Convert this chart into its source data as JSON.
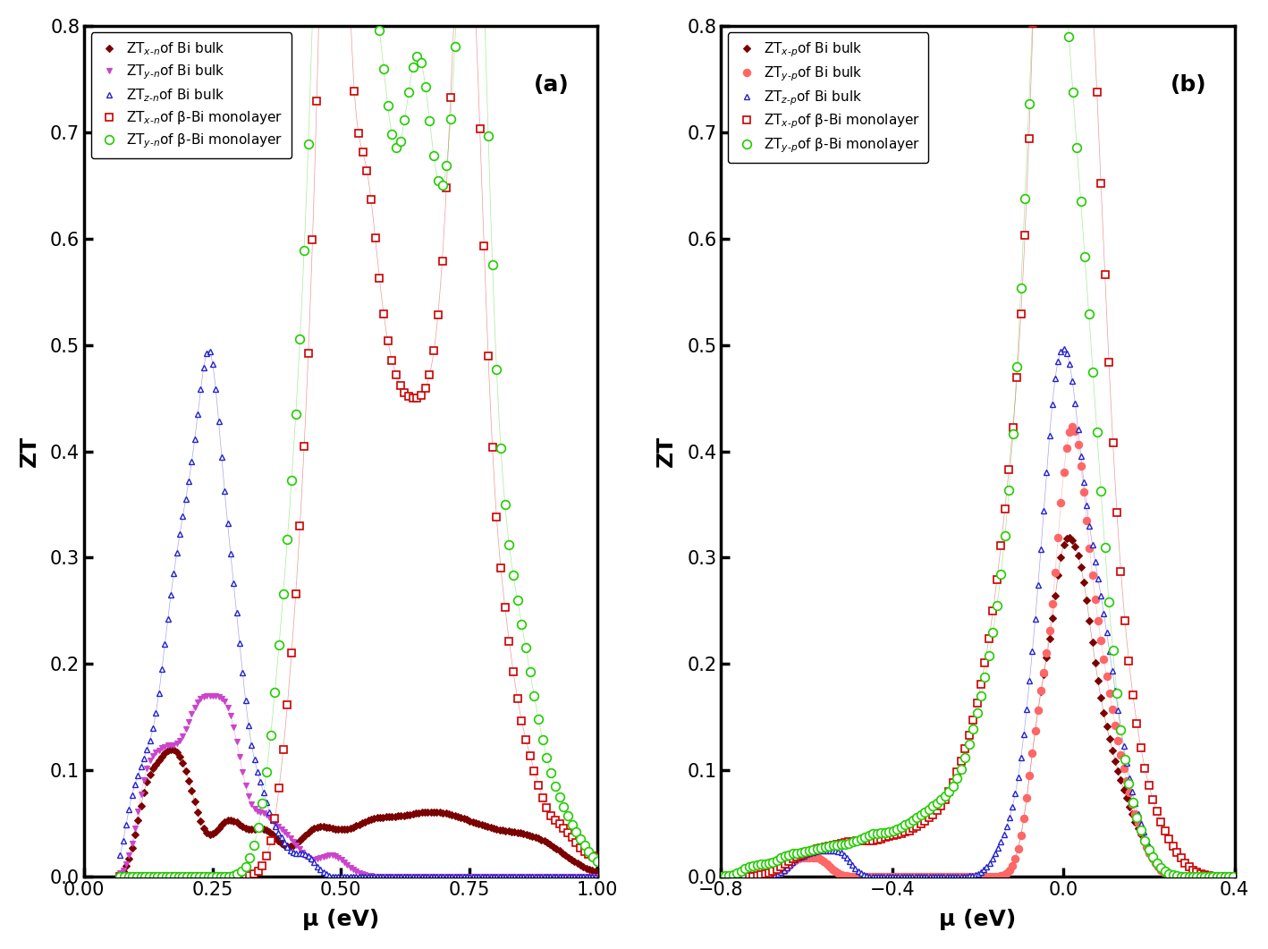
{
  "panel_a": {
    "title": "(a)",
    "xlabel": "μ (eV)",
    "ylabel": "ZT",
    "xlim": [
      0.05,
      1.0
    ],
    "ylim": [
      0.0,
      0.8
    ],
    "xticks": [
      0.0,
      0.25,
      0.5,
      0.75,
      1.0
    ],
    "yticks": [
      0.0,
      0.1,
      0.2,
      0.3,
      0.4,
      0.5,
      0.6,
      0.7,
      0.8
    ],
    "series": [
      {
        "label": "ZT$_{x\\text{-}n}$of Bi bulk",
        "color": "#7B0000",
        "marker": "D",
        "ms": 4,
        "filled": true,
        "mew": 0.8
      },
      {
        "label": "ZT$_{y\\text{-}n}$of Bi bulk",
        "color": "#CC44CC",
        "marker": "v",
        "ms": 5,
        "filled": true,
        "mew": 0.8
      },
      {
        "label": "ZT$_{z\\text{-}n}$of Bi bulk",
        "color": "#2222CC",
        "marker": "^",
        "ms": 5,
        "filled": false,
        "mew": 1.0
      },
      {
        "label": "ZT$_{x\\text{-}n}$of β-Bi monolayer",
        "color": "#CC0000",
        "marker": "s",
        "ms": 6,
        "filled": false,
        "mew": 1.2
      },
      {
        "label": "ZT$_{y\\text{-}n}$of β-Bi monolayer",
        "color": "#22CC00",
        "marker": "o",
        "ms": 7,
        "filled": false,
        "mew": 1.2
      }
    ]
  },
  "panel_b": {
    "title": "(b)",
    "xlabel": "μ (eV)",
    "ylabel": "ZT",
    "xlim": [
      -0.8,
      0.4
    ],
    "ylim": [
      0.0,
      0.8
    ],
    "xticks": [
      -0.8,
      -0.4,
      0.0,
      0.4
    ],
    "yticks": [
      0.0,
      0.1,
      0.2,
      0.3,
      0.4,
      0.5,
      0.6,
      0.7,
      0.8
    ],
    "series": [
      {
        "label": "ZT$_{x\\text{-}p}$of Bi bulk",
        "color": "#7B0000",
        "marker": "D",
        "ms": 4,
        "filled": true,
        "mew": 0.8
      },
      {
        "label": "ZT$_{y\\text{-}p}$of Bi bulk",
        "color": "#FF6666",
        "marker": "o",
        "ms": 6,
        "filled": true,
        "mew": 0.8
      },
      {
        "label": "ZT$_{z\\text{-}p}$of Bi bulk",
        "color": "#2222CC",
        "marker": "^",
        "ms": 5,
        "filled": false,
        "mew": 1.0
      },
      {
        "label": "ZT$_{x\\text{-}p}$of β-Bi monolayer",
        "color": "#CC0000",
        "marker": "s",
        "ms": 6,
        "filled": false,
        "mew": 1.2
      },
      {
        "label": "ZT$_{y\\text{-}p}$of β-Bi monolayer",
        "color": "#22CC00",
        "marker": "o",
        "ms": 7,
        "filled": false,
        "mew": 1.2
      }
    ]
  }
}
